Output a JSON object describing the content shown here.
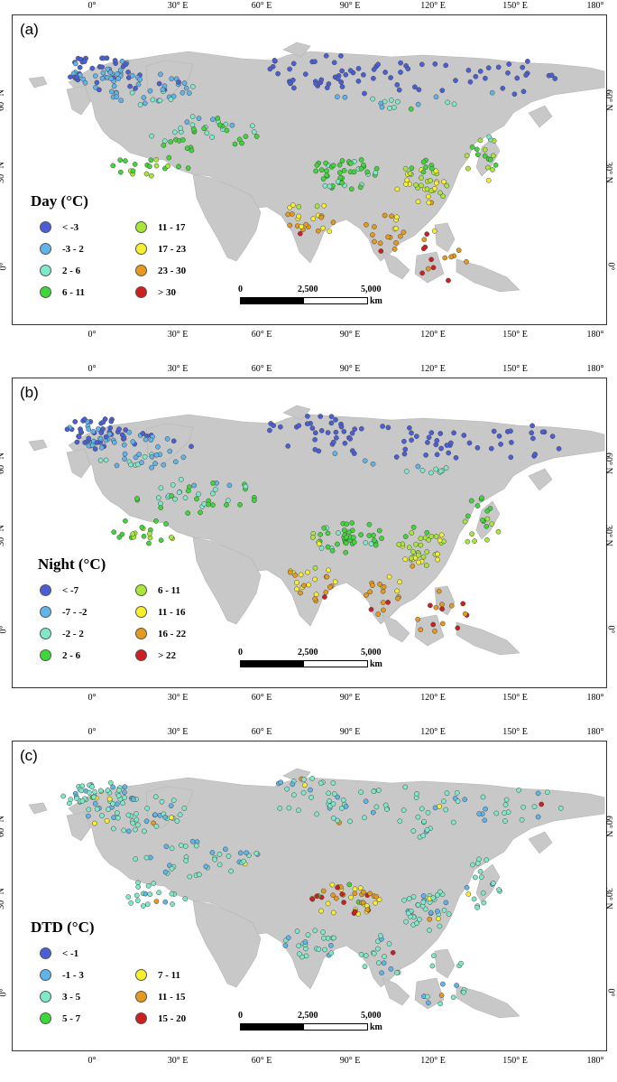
{
  "axes": {
    "lon_labels": [
      "0°",
      "30° E",
      "60° E",
      "90° E",
      "120° E",
      "150° E",
      "180°"
    ],
    "lat_labels": [
      "0°",
      "30° N",
      "60° N"
    ]
  },
  "scalebar": {
    "labels": [
      "0",
      "2,500",
      "5,000"
    ],
    "unit": "km"
  },
  "panels": [
    {
      "label": "(a)",
      "legend_title": "Day (°C)",
      "classes": [
        {
          "label": "< -3",
          "color": "#4a5fd6"
        },
        {
          "label": "-3 - 2",
          "color": "#5fb4ea"
        },
        {
          "label": "2 - 6",
          "color": "#7fe8c8"
        },
        {
          "label": "6 - 11",
          "color": "#3fd63a"
        },
        {
          "label": "11 - 17",
          "color": "#a8e63a"
        },
        {
          "label": "17 - 23",
          "color": "#f7ef2e"
        },
        {
          "label": "23 - 30",
          "color": "#e59a1e"
        },
        {
          "label": "> 30",
          "color": "#cc1f1f"
        }
      ]
    },
    {
      "label": "(b)",
      "legend_title": "Night (°C)",
      "classes": [
        {
          "label": "< -7",
          "color": "#4a5fd6"
        },
        {
          "label": "-7 - -2",
          "color": "#5fb4ea"
        },
        {
          "label": "-2 - 2",
          "color": "#7fe8c8"
        },
        {
          "label": "2 - 6",
          "color": "#3fd63a"
        },
        {
          "label": "6 - 11",
          "color": "#a8e63a"
        },
        {
          "label": "11 - 16",
          "color": "#f7ef2e"
        },
        {
          "label": "16 - 22",
          "color": "#e59a1e"
        },
        {
          "label": "> 22",
          "color": "#cc1f1f"
        }
      ]
    },
    {
      "label": "(c)",
      "legend_title": "DTD (°C)",
      "classes": [
        {
          "label": "< -1",
          "color": "#4a5fd6"
        },
        {
          "label": "-1 - 3",
          "color": "#5fb4ea"
        },
        {
          "label": "3 - 5",
          "color": "#7fe8c8"
        },
        {
          "label": "5 - 7",
          "color": "#3fd63a"
        },
        {
          "label": "7 - 11",
          "color": "#f7ef2e"
        },
        {
          "label": "11 - 15",
          "color": "#e59a1e"
        },
        {
          "label": "15 - 20",
          "color": "#cc1f1f"
        }
      ]
    }
  ]
}
